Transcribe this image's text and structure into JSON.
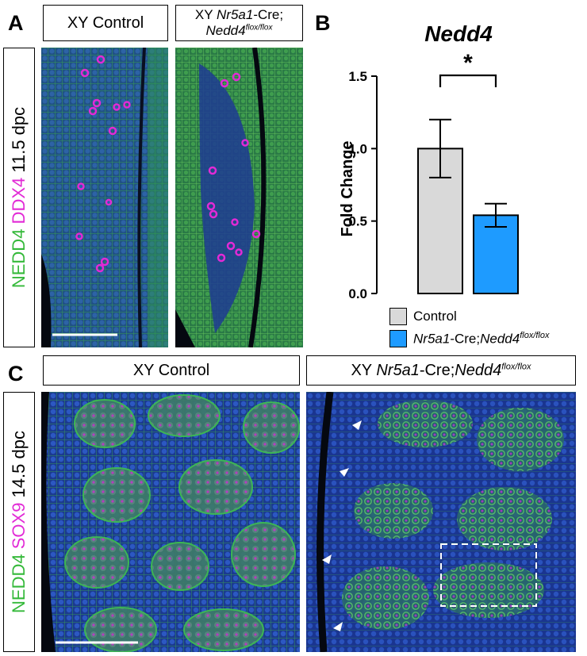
{
  "panels": {
    "a": {
      "letter": "A",
      "control_label": "XY Control",
      "mutant_label_parts": [
        "XY ",
        "Nr5a1",
        "-Cre;",
        "Nedd4",
        "flox/flox"
      ],
      "stain": [
        "NEDD4",
        " ",
        "DDX4",
        " ",
        "11.5 dpc"
      ]
    },
    "b": {
      "letter": "B"
    },
    "c": {
      "letter": "C",
      "control_label": "XY Control",
      "mutant_label_parts": [
        "XY ",
        "Nr5a1",
        "-Cre;",
        "Nedd4",
        "flox/flox"
      ],
      "stain": [
        "NEDD4",
        " ",
        "SOX9",
        " ",
        "14.5 dpc"
      ]
    }
  },
  "colors": {
    "green": "#35b93a",
    "magenta": "#e22ad6",
    "control_bar": "#d9d9d9",
    "mutant_bar": "#1e9bff"
  },
  "chart_data": {
    "type": "bar",
    "title": "Nedd4",
    "ylabel": "Fold Change",
    "ylim": [
      0,
      1.5
    ],
    "yticks": [
      "0.0",
      "0.5",
      "1.0",
      "1.5"
    ],
    "categories": [
      "Control",
      "Nr5a1-Cre;Nedd4flox/flox"
    ],
    "values": [
      1.0,
      0.54
    ],
    "errors": [
      0.2,
      0.08
    ],
    "significance": "*",
    "legend": {
      "placement": "bottom",
      "entries": [
        {
          "parts": [
            "Control"
          ]
        },
        {
          "parts": [
            "Nr5a1",
            "-Cre;",
            "Nedd4",
            "flox/flox"
          ]
        }
      ]
    }
  }
}
